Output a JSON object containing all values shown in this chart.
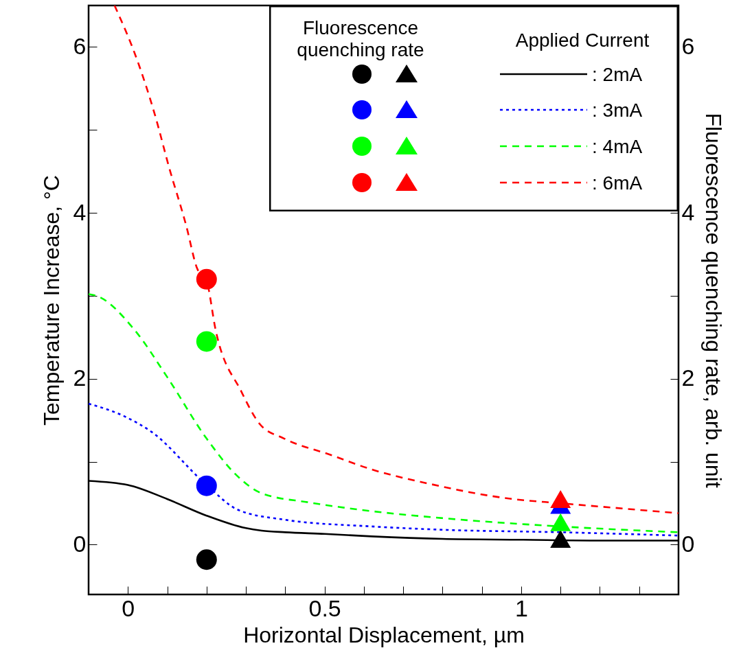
{
  "chart_data": {
    "type": "line",
    "xlabel": "Horizontal Displacement, µm",
    "ylabel": "Temperature Increase, °C",
    "y2label": "Fluorescence quenching rate, arb. unit",
    "legend_title": "Applied Current",
    "legend": "top right",
    "annotations": [
      "Fluorescence quenching rate"
    ],
    "xlim": [
      -0.1,
      1.4
    ],
    "xticks": [
      0,
      {
        "value": 0.1,
        "label": null
      },
      {
        "value": 0.2,
        "label": null
      },
      {
        "value": 0.3,
        "label": null
      },
      {
        "value": 0.4,
        "label": null
      },
      0.5,
      {
        "value": 0.6,
        "label": null
      },
      {
        "value": 0.7,
        "label": null
      },
      {
        "value": 0.8,
        "label": null
      },
      {
        "value": 0.9,
        "label": null
      },
      1,
      {
        "value": 1.1,
        "label": null
      },
      {
        "value": 1.2,
        "label": null
      },
      {
        "value": 1.3,
        "label": null
      }
    ],
    "ylim": [
      -0.6,
      6.5
    ],
    "yticks": [
      0,
      {
        "value": 1,
        "label": null
      },
      2,
      {
        "value": 3,
        "label": null
      },
      4,
      {
        "value": 5,
        "label": null
      },
      6
    ],
    "y2lim": [
      -0.6,
      6.5
    ],
    "y2ticks": [
      0,
      {
        "value": 1,
        "label": null
      },
      2,
      {
        "value": 3,
        "label": null
      },
      4,
      {
        "value": 5,
        "label": null
      },
      6
    ],
    "series": [
      {
        "name": ": 2mA",
        "line_style": "solid",
        "color": "#000000",
        "x": [
          -0.1,
          0,
          0.1,
          0.2,
          0.3,
          0.34,
          0.4,
          0.5,
          0.62,
          0.8,
          1.0,
          1.2,
          1.4
        ],
        "values": [
          0.77,
          0.72,
          0.55,
          0.35,
          0.2,
          0.17,
          0.15,
          0.13,
          0.1,
          0.07,
          0.06,
          0.05,
          0.05
        ]
      },
      {
        "name": ": 3mA",
        "line_style": "dotted",
        "color": "#0000ff",
        "x": [
          -0.1,
          -0.01,
          0.06,
          0.2,
          0.28,
          0.4,
          0.62,
          0.8,
          1.1,
          1.4
        ],
        "values": [
          1.7,
          1.55,
          1.36,
          0.72,
          0.42,
          0.3,
          0.22,
          0.18,
          0.15,
          0.11
        ]
      },
      {
        "name": ": 4mA",
        "line_style": "dashed",
        "color": "#00ff00",
        "x": [
          -0.1,
          -0.08,
          0.015,
          0.1,
          0.2,
          0.28,
          0.34,
          0.46,
          0.61,
          0.8,
          1.1,
          1.4
        ],
        "values": [
          3.02,
          3.0,
          2.6,
          2.02,
          1.28,
          0.82,
          0.62,
          0.51,
          0.41,
          0.32,
          0.22,
          0.15
        ]
      },
      {
        "name": ": 6mA",
        "line_style": "dashed",
        "color": "#ff0000",
        "x": [
          -0.034,
          0.026,
          0.07,
          0.104,
          0.148,
          0.176,
          0.2,
          0.223,
          0.288,
          0.336,
          0.397,
          0.517,
          0.618,
          0.761,
          0.979,
          1.1,
          1.4
        ],
        "values": [
          6.5,
          5.81,
          5.16,
          4.56,
          3.85,
          3.33,
          3.18,
          2.59,
          1.85,
          1.45,
          1.28,
          1.08,
          0.91,
          0.74,
          0.55,
          0.5,
          0.38
        ]
      },
      {
        "type": "scatter",
        "axis": "y2",
        "marker": "circle",
        "color": "#000000",
        "x": [
          0.2
        ],
        "values": [
          -0.18
        ]
      },
      {
        "type": "scatter",
        "axis": "y2",
        "marker": "circle",
        "color": "#0000ff",
        "x": [
          0.2
        ],
        "values": [
          0.71
        ]
      },
      {
        "type": "scatter",
        "axis": "y2",
        "marker": "circle",
        "color": "#00ff00",
        "x": [
          0.2
        ],
        "values": [
          2.45
        ]
      },
      {
        "type": "scatter",
        "axis": "y2",
        "marker": "circle",
        "color": "#ff0000",
        "x": [
          0.2
        ],
        "values": [
          3.2
        ]
      },
      {
        "type": "scatter",
        "axis": "y2",
        "marker": "triangle",
        "color": "#000000",
        "x": [
          1.1
        ],
        "values": [
          0.07
        ]
      },
      {
        "type": "scatter",
        "axis": "y2",
        "marker": "triangle",
        "color": "#0000ff",
        "x": [
          1.1
        ],
        "values": [
          0.48
        ]
      },
      {
        "type": "scatter",
        "axis": "y2",
        "marker": "triangle",
        "color": "#00ff00",
        "x": [
          1.1
        ],
        "values": [
          0.27
        ]
      },
      {
        "type": "scatter",
        "axis": "y2",
        "marker": "triangle",
        "color": "#ff0000",
        "x": [
          1.1
        ],
        "values": [
          0.55
        ]
      }
    ]
  }
}
